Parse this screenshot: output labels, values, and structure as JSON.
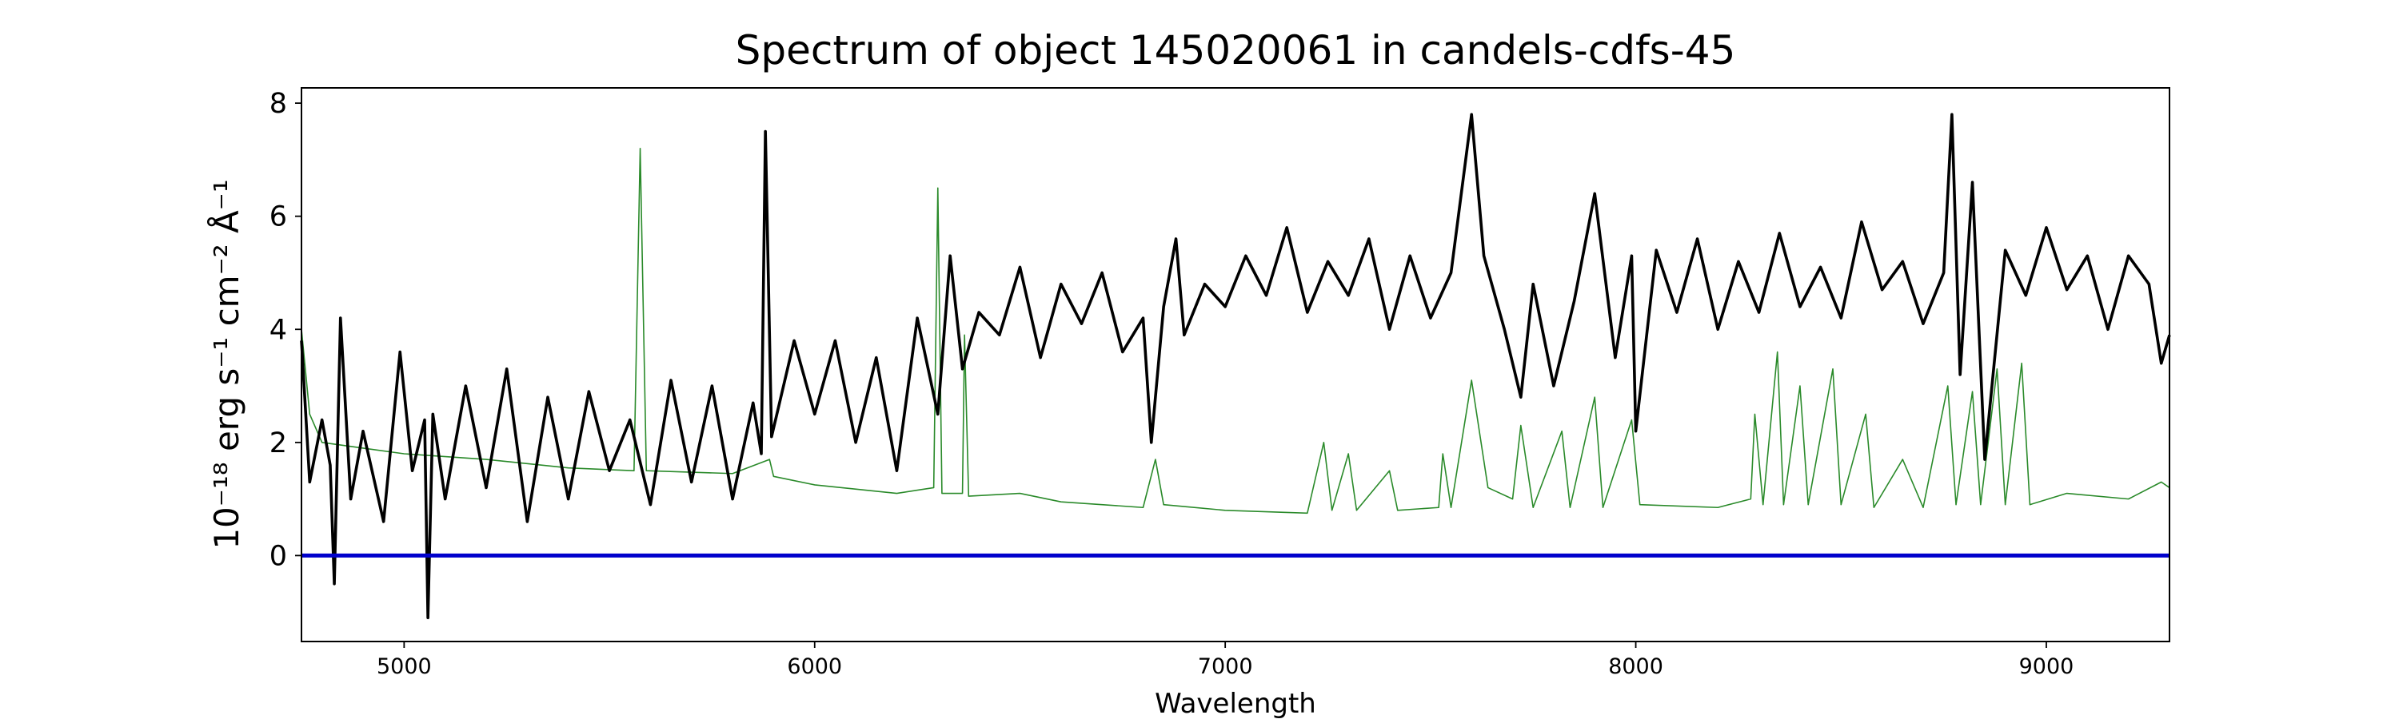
{
  "chart_data": {
    "type": "line",
    "title": "Spectrum of object 145020061 in candels-cdfs-45",
    "xlabel": "Wavelength",
    "ylabel": "10⁻¹⁸ erg s⁻¹ cm⁻² Å⁻¹",
    "xlim": [
      4750,
      9300
    ],
    "ylim": [
      -1.52,
      8.27
    ],
    "xticks": [
      5000,
      6000,
      7000,
      8000,
      9000
    ],
    "yticks": [
      0,
      2,
      4,
      6,
      8
    ],
    "grid": false,
    "series": [
      {
        "color": "#2a8a2a",
        "width": 1.6,
        "x": [
          4750,
          4770,
          4800,
          4900,
          5000,
          5200,
          5400,
          5560,
          5575,
          5590,
          5800,
          5890,
          5900,
          6000,
          6200,
          6290,
          6300,
          6310,
          6360,
          6365,
          6375,
          6500,
          6600,
          6800,
          6830,
          6850,
          7000,
          7200,
          7240,
          7260,
          7300,
          7320,
          7400,
          7420,
          7520,
          7530,
          7550,
          7600,
          7640,
          7700,
          7720,
          7750,
          7820,
          7840,
          7900,
          7920,
          7990,
          8010,
          8200,
          8280,
          8290,
          8310,
          8345,
          8360,
          8400,
          8420,
          8480,
          8500,
          8560,
          8580,
          8650,
          8700,
          8760,
          8780,
          8820,
          8840,
          8880,
          8900,
          8940,
          8960,
          9050,
          9200,
          9280,
          9300
        ],
        "values": [
          4.0,
          2.5,
          2.0,
          1.9,
          1.8,
          1.7,
          1.55,
          1.5,
          7.2,
          1.5,
          1.45,
          1.7,
          1.4,
          1.25,
          1.1,
          1.2,
          6.5,
          1.1,
          1.1,
          3.9,
          1.05,
          1.1,
          0.95,
          0.85,
          1.7,
          0.9,
          0.8,
          0.75,
          2.0,
          0.8,
          1.8,
          0.8,
          1.5,
          0.8,
          0.85,
          1.8,
          0.85,
          3.1,
          1.2,
          1.0,
          2.3,
          0.85,
          2.2,
          0.85,
          2.8,
          0.85,
          2.4,
          0.9,
          0.85,
          1.0,
          2.5,
          0.9,
          3.6,
          0.9,
          3.0,
          0.9,
          3.3,
          0.9,
          2.5,
          0.85,
          1.7,
          0.85,
          3.0,
          0.9,
          2.9,
          0.9,
          3.3,
          0.9,
          3.4,
          0.9,
          1.1,
          1.0,
          1.3,
          1.2
        ]
      },
      {
        "color": "#000000",
        "width": 3.6,
        "x": [
          4750,
          4770,
          4800,
          4820,
          4830,
          4845,
          4870,
          4900,
          4950,
          4990,
          5020,
          5050,
          5058,
          5070,
          5100,
          5150,
          5200,
          5250,
          5300,
          5350,
          5400,
          5450,
          5500,
          5550,
          5600,
          5650,
          5700,
          5750,
          5800,
          5850,
          5870,
          5880,
          5895,
          5950,
          6000,
          6050,
          6100,
          6150,
          6200,
          6250,
          6300,
          6330,
          6360,
          6400,
          6450,
          6500,
          6550,
          6600,
          6650,
          6700,
          6750,
          6800,
          6820,
          6850,
          6880,
          6900,
          6950,
          7000,
          7050,
          7100,
          7150,
          7200,
          7250,
          7300,
          7350,
          7400,
          7450,
          7500,
          7550,
          7600,
          7630,
          7680,
          7720,
          7750,
          7800,
          7850,
          7900,
          7950,
          7990,
          8000,
          8050,
          8100,
          8150,
          8200,
          8250,
          8300,
          8350,
          8400,
          8450,
          8500,
          8550,
          8600,
          8650,
          8700,
          8750,
          8770,
          8790,
          8820,
          8850,
          8900,
          8950,
          9000,
          9050,
          9100,
          9150,
          9200,
          9250,
          9280,
          9300
        ],
        "values": [
          3.8,
          1.3,
          2.4,
          1.6,
          -0.5,
          4.2,
          1.0,
          2.2,
          0.6,
          3.6,
          1.5,
          2.4,
          -1.1,
          2.5,
          1.0,
          3.0,
          1.2,
          3.3,
          0.6,
          2.8,
          1.0,
          2.9,
          1.5,
          2.4,
          0.9,
          3.1,
          1.3,
          3.0,
          1.0,
          2.7,
          1.8,
          7.5,
          2.1,
          3.8,
          2.5,
          3.8,
          2.0,
          3.5,
          1.5,
          4.2,
          2.5,
          5.3,
          3.3,
          4.3,
          3.9,
          5.1,
          3.5,
          4.8,
          4.1,
          5.0,
          3.6,
          4.2,
          2.0,
          4.4,
          5.6,
          3.9,
          4.8,
          4.4,
          5.3,
          4.6,
          5.8,
          4.3,
          5.2,
          4.6,
          5.6,
          4.0,
          5.3,
          4.2,
          5.0,
          7.8,
          5.3,
          4.0,
          2.8,
          4.8,
          3.0,
          4.5,
          6.4,
          3.5,
          5.3,
          2.2,
          5.4,
          4.3,
          5.6,
          4.0,
          5.2,
          4.3,
          5.7,
          4.4,
          5.1,
          4.2,
          5.9,
          4.7,
          5.2,
          4.1,
          5.0,
          7.8,
          3.2,
          6.6,
          1.7,
          5.4,
          4.6,
          5.8,
          4.7,
          5.3,
          4.0,
          5.3,
          4.8,
          3.4,
          3.9
        ]
      },
      {
        "color": "#0000cc",
        "width": 5,
        "x": [
          4750,
          9300
        ],
        "values": [
          0,
          0
        ]
      }
    ]
  }
}
